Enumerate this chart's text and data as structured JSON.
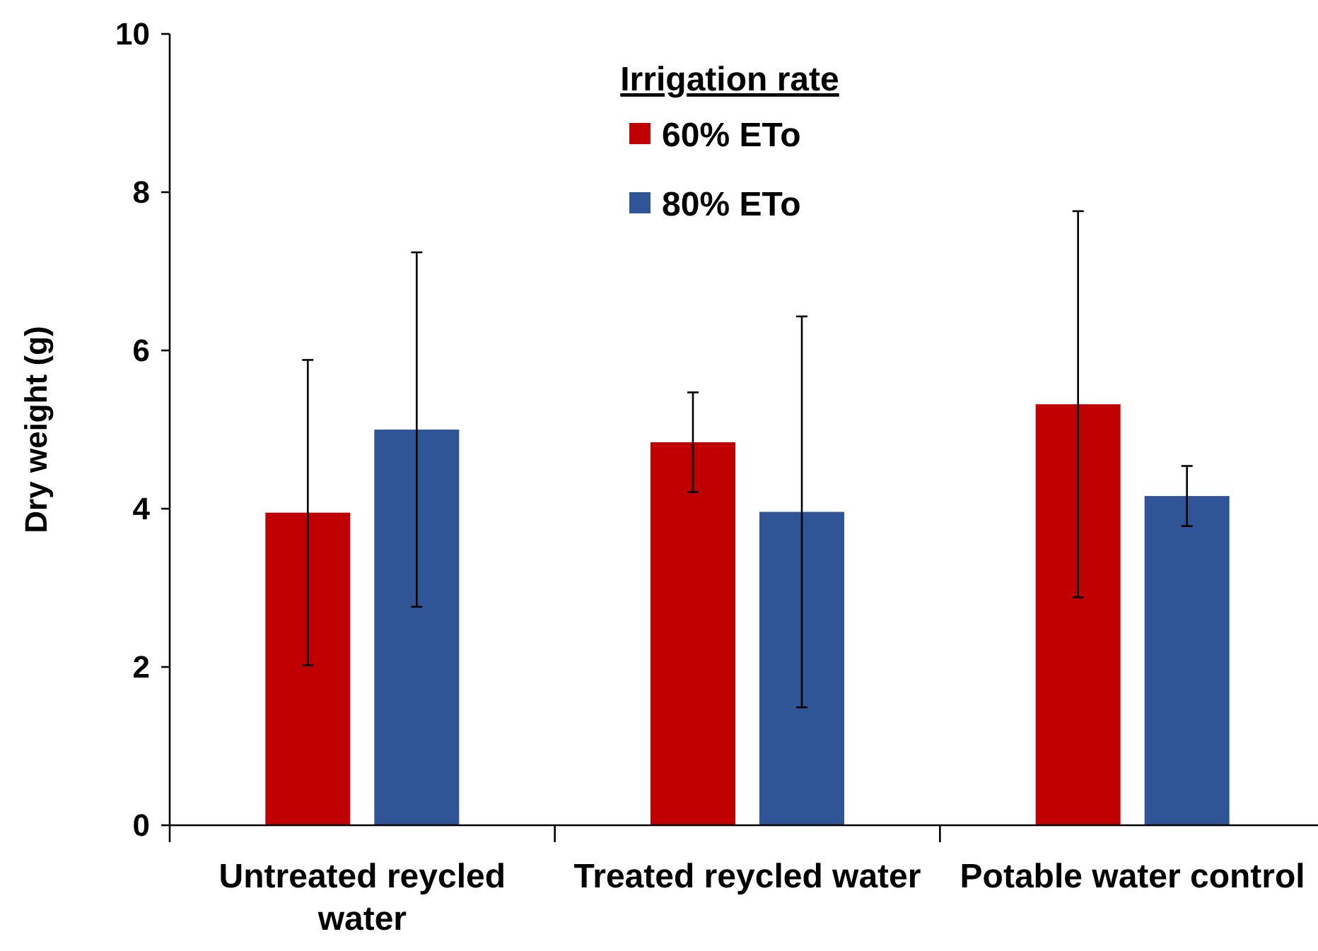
{
  "chart_data": {
    "type": "bar",
    "ylabel": "Dry weight (g)",
    "legend_title": "Irrigation rate",
    "legend": "top",
    "grid": false,
    "categories": [
      "Untreated reycled water",
      "Treated reycled water",
      "Potable water control"
    ],
    "series": [
      {
        "name": "60% ETo",
        "color": "#c00000",
        "values": [
          3.95,
          4.84,
          5.32
        ],
        "errors": [
          1.93,
          0.63,
          2.44
        ]
      },
      {
        "name": "80% ETo",
        "color": "#2f5597",
        "values": [
          5.0,
          3.96,
          4.16
        ],
        "errors": [
          2.24,
          2.47,
          0.38
        ]
      }
    ],
    "ylim": [
      0,
      10
    ],
    "yticks": [
      0,
      2,
      4,
      6,
      8,
      10
    ]
  }
}
